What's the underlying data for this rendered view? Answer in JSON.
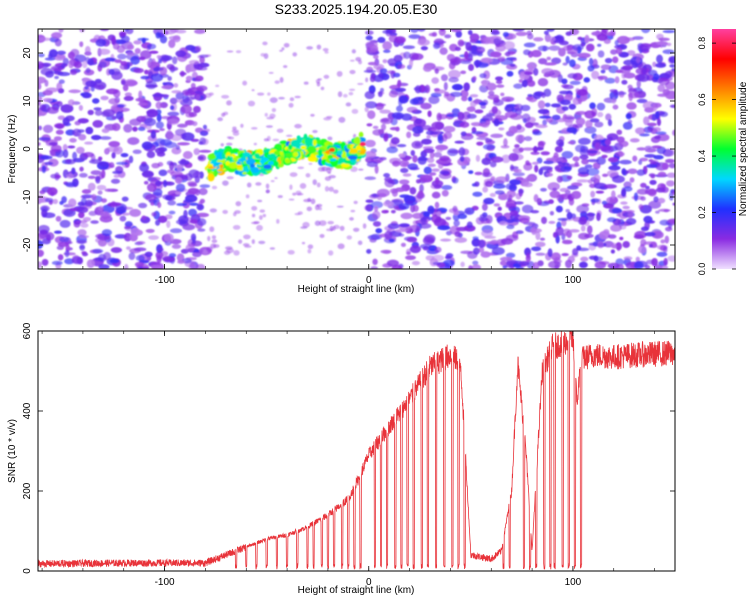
{
  "title": "S233.2025.194.20.05.E30",
  "chart_data": [
    {
      "type": "heatmap",
      "xlabel": "Height of straight line (km)",
      "ylabel": "Frequency (Hz)",
      "xlim": [
        -162,
        150
      ],
      "ylim": [
        -25,
        25
      ],
      "xticks": [
        -100,
        0,
        100
      ],
      "yticks": [
        -20,
        -10,
        0,
        10,
        20
      ],
      "colorbar": {
        "label": "Normalized spectral amplitude",
        "range": [
          0,
          0.85
        ],
        "ticks": [
          0.0,
          0.2,
          0.4,
          0.6,
          0.8
        ],
        "colors": [
          "#f0e0ff",
          "#8a2be2",
          "#2030ff",
          "#00d8ff",
          "#00ff30",
          "#ffff00",
          "#ff8000",
          "#ff0000",
          "#ff40a0"
        ]
      },
      "noise_regions_km": [
        [
          -162,
          -80
        ],
        [
          0,
          75
        ],
        [
          76,
          150
        ]
      ],
      "signal_trace": [
        {
          "x": -78,
          "y": -4
        },
        {
          "x": -70,
          "y": -2
        },
        {
          "x": -60,
          "y": -3
        },
        {
          "x": -50,
          "y": -2.5
        },
        {
          "x": -40,
          "y": -0.5
        },
        {
          "x": -30,
          "y": 0.5
        },
        {
          "x": -20,
          "y": -1
        },
        {
          "x": -10,
          "y": -1.5
        },
        {
          "x": -3,
          "y": 1
        }
      ]
    },
    {
      "type": "line",
      "xlabel": "Height of straight line (km)",
      "ylabel": "SNR (10 * v/v)",
      "xlim": [
        -162,
        150
      ],
      "ylim": [
        0,
        600
      ],
      "xticks": [
        -100,
        0,
        100
      ],
      "yticks": [
        0,
        200,
        400,
        600
      ],
      "line_color": "#e8333a",
      "series": [
        {
          "baseline": [
            [
              -162,
              18
            ],
            [
              -120,
              20
            ],
            [
              -80,
              20
            ],
            [
              -70,
              40
            ],
            [
              -60,
              60
            ],
            [
              -50,
              80
            ],
            [
              -40,
              90
            ],
            [
              -30,
              110
            ],
            [
              -20,
              140
            ],
            [
              -10,
              180
            ],
            [
              -5,
              230
            ],
            [
              0,
              290
            ],
            [
              10,
              360
            ],
            [
              20,
              430
            ],
            [
              30,
              510
            ],
            [
              40,
              540
            ],
            [
              45,
              520
            ],
            [
              50,
              40
            ],
            [
              60,
              30
            ],
            [
              65,
              50
            ],
            [
              70,
              200
            ],
            [
              73,
              520
            ],
            [
              77,
              300
            ],
            [
              80,
              50
            ],
            [
              85,
              500
            ],
            [
              90,
              560
            ],
            [
              95,
              570
            ],
            [
              100,
              580
            ],
            [
              102,
              420
            ],
            [
              104,
              530
            ],
            [
              110,
              540
            ],
            [
              120,
              535
            ],
            [
              130,
              540
            ],
            [
              150,
              545
            ]
          ],
          "dropouts_km": [
            -65,
            -60,
            -55,
            -50,
            -45,
            -40,
            -35,
            -30,
            -27,
            -23,
            -20,
            -17,
            -13,
            -10,
            -7,
            -4,
            3,
            6,
            9,
            13,
            16,
            19,
            22,
            26,
            29,
            33,
            37,
            41,
            44,
            47,
            66,
            69,
            76,
            79,
            82,
            86,
            89,
            91,
            95,
            98,
            101,
            104
          ]
        }
      ]
    }
  ]
}
